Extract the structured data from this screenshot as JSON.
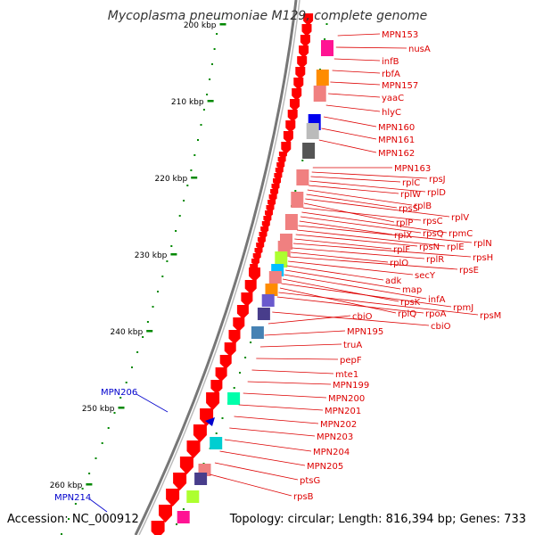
{
  "title": "Mycoplasma pneumoniae M129, complete genome",
  "footer": {
    "accession": "Accession: NC_000912",
    "topology": "Topology: circular; Length: 816,394 bp; Genes: 733"
  },
  "colors": {
    "gene_arrow": "#ff0000",
    "label": "#dd0000",
    "outer_label": "#0000cc",
    "kbp_tick": "#008800",
    "backbone": "#777777"
  },
  "kbp_ticks": [
    "200 kbp",
    "210 kbp",
    "220 kbp",
    "230 kbp",
    "240 kbp",
    "250 kbp",
    "260 kbp"
  ],
  "outer_genes": [
    "MPN206",
    "MPN214"
  ],
  "genes": [
    "MPN153",
    "nusA",
    "infB",
    "rbfA",
    "MPN157",
    "yaaC",
    "hlyC",
    "MPN160",
    "MPN161",
    "MPN162",
    "MPN163",
    "rpsJ",
    "rplC",
    "rplD",
    "rplW",
    "rplB",
    "rpsS",
    "rplV",
    "rplP",
    "rpsC",
    "rpmC",
    "rpsQ",
    "rplX",
    "rplN",
    "rplE",
    "rpsN",
    "rplF",
    "rpsH",
    "rplR",
    "rplO",
    "rpsE",
    "secY",
    "adk",
    "map",
    "infA",
    "rpsK",
    "rpmJ",
    "rplQ",
    "rpsM",
    "rpoA",
    "cbiO",
    "cbiO",
    "MPN195",
    "truA",
    "pepF",
    "mte1",
    "MPN199",
    "MPN200",
    "MPN201",
    "MPN202",
    "MPN203",
    "MPN204",
    "MPN205",
    "ptsG",
    "rpsB"
  ],
  "categories": [
    "#ff1493",
    "#ff8c00",
    "#f08080",
    "#0000ee",
    "#bbbbbb",
    "#555555",
    "#f08080",
    "#f08080",
    "#f08080",
    "#f08080",
    "#f08080",
    "#adff2f",
    "#00bfff",
    "#f08080",
    "#ff8c00",
    "#6a5acd",
    "#483d8b",
    "#4682b4",
    "#00ffaa",
    "#00ced1",
    "#f08080",
    "#483d8b",
    "#adff2f",
    "#ff1493"
  ]
}
